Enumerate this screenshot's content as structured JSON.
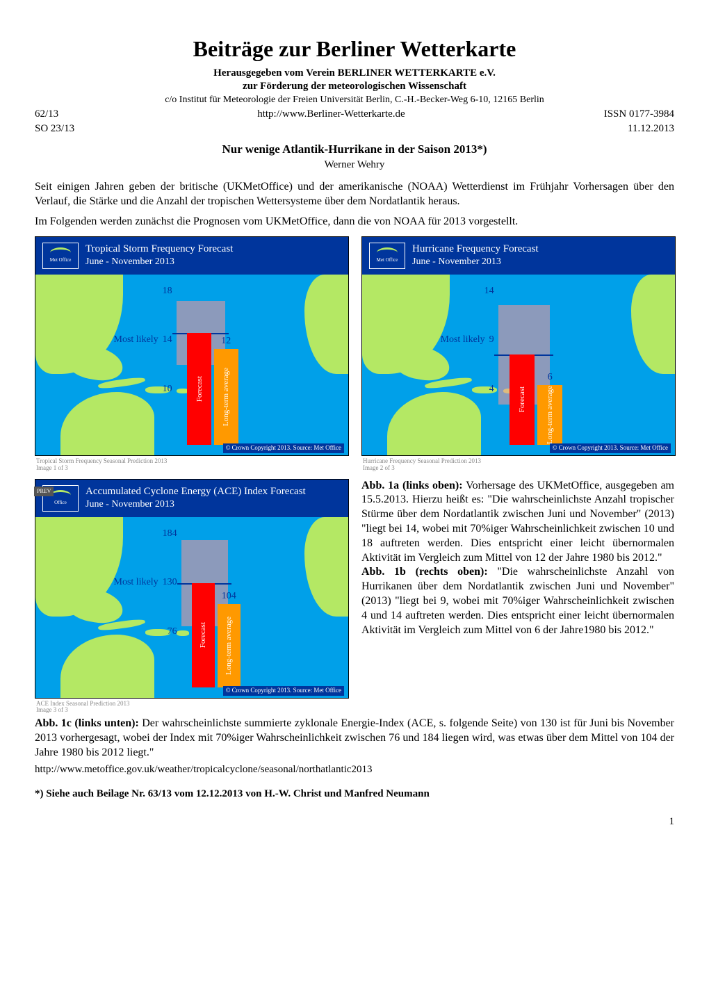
{
  "title": "Beiträge zur Berliner Wetterkarte",
  "publisher_line1": "Herausgegeben vom Verein BERLINER WETTERKARTE e.V.",
  "publisher_line2": "zur Förderung der meteorologischen Wissenschaft",
  "address": "c/o Institut für Meteorologie der Freien Universität Berlin, C.-H.-Becker-Weg 6-10, 12165 Berlin",
  "issue_left": "62/13",
  "website": "http://www.Berliner-Wetterkarte.de",
  "issn": "ISSN 0177-3984",
  "code_left": "SO 23/13",
  "date_right": "11.12.2013",
  "article_title": "Nur wenige Atlantik-Hurrikane in der Saison 2013*)",
  "author": "Werner Wehry",
  "para1": "Seit einigen Jahren geben der britische (UKMetOffice) und der amerikanische (NOAA) Wetterdienst im Frühjahr Vorhersagen über den Verlauf, die Stärke und die Anzahl der tropischen Wettersysteme über dem Nordatlantik heraus.",
  "para2": "Im Folgenden werden zunächst die Prognosen vom UKMetOffice, dann die von NOAA für 2013 vorgestellt.",
  "fig1a": {
    "logo_text": "Met Office",
    "title": "Tropical Storm Frequency Forecast",
    "period": "June - November 2013",
    "upper": 18,
    "most_likely": 14,
    "lower": 10,
    "long_term_avg": 12,
    "most_likely_label": "Most likely",
    "forecast_bar_label": "Forecast",
    "avg_bar_label": "Long-term average",
    "forecast_color": "#ff0000",
    "avg_color": "#ff9900",
    "range_color": "rgba(255,150,150,0.55)",
    "sea_color": "#00a0e9",
    "land_color": "#b4e864",
    "label_color": "#00359c",
    "copyright": "© Crown Copyright 2013. Source: Met Office",
    "caption_small1": "Tropical Storm Frequency Seasonal Prediction 2013",
    "caption_small2": "Image 1 of 3"
  },
  "fig1b": {
    "logo_text": "Met Office",
    "title": "Hurricane Frequency Forecast",
    "period": "June - November 2013",
    "upper": 14,
    "most_likely": 9,
    "lower": 4,
    "long_term_avg": 6,
    "most_likely_label": "Most likely",
    "forecast_bar_label": "Forecast",
    "avg_bar_label": "Long-term average",
    "forecast_color": "#ff0000",
    "avg_color": "#ff9900",
    "range_color": "rgba(255,150,150,0.55)",
    "copyright": "© Crown Copyright 2013. Source: Met Office",
    "caption_small1": "Hurricane Frequency Seasonal Prediction 2013",
    "caption_small2": "Image 2 of 3"
  },
  "fig1c": {
    "logo_text": "Office",
    "prev_badge": "PREV",
    "title": "Accumulated Cyclone Energy (ACE) Index Forecast",
    "period": "June - November 2013",
    "upper": 184,
    "most_likely": 130,
    "lower": 76,
    "long_term_avg": 104,
    "most_likely_label": "Most likely",
    "forecast_bar_label": "Forecast",
    "avg_bar_label": "Long-term average",
    "forecast_color": "#ff0000",
    "avg_color": "#ff9900",
    "range_color": "rgba(255,150,150,0.55)",
    "copyright": "© Crown Copyright 2013. Source: Met Office",
    "caption_small1": "ACE Index Seasonal Prediction 2013",
    "caption_small2": "Image 3 of 3"
  },
  "caption_1a_head": "Abb. 1a (links oben):",
  "caption_1a_body": " Vorhersage des UKMetOffice, ausgegeben am 15.5.2013. Hierzu heißt es: \"Die wahrscheinlichste Anzahl tropischer Stürme über dem Nordatlantik zwischen Juni und November\" (2013) \"liegt bei 14, wobei mit 70%iger Wahrscheinlichkeit zwischen 10 und 18 auftreten werden. Dies entspricht einer leicht übernormalen Aktivität im Vergleich zum Mittel von 12 der Jahre 1980 bis 2012.\"",
  "caption_1b_head": "Abb. 1b (rechts oben):",
  "caption_1b_body": " \"Die wahrscheinlichste Anzahl von Hurrikanen über dem Nordatlantik zwischen Juni und November\" (2013) \"liegt bei 9, wobei mit 70%iger Wahrscheinlichkeit zwischen 4 und 14 auftreten werden. Dies entspricht einer leicht übernormalen Aktivität im Vergleich zum Mittel von 6 der Jahre1980 bis 2012.\"",
  "caption_1c_head": "Abb. 1c (links unten):",
  "caption_1c_body": " Der wahrscheinlichste summierte zyklonale Energie-Index (ACE, s. folgende Seite) von 130 ist für Juni bis November 2013 vorhergesagt, wobei der Index mit 70%iger Wahrscheinlichkeit zwischen 76 und 184 liegen wird, was etwas über dem Mittel von 104 der Jahre 1980 bis 2012 liegt.\"",
  "source_url": "http://www.metoffice.gov.uk/weather/tropicalcyclone/seasonal/northatlantic2013",
  "footnote": "*)  Siehe auch Beilage Nr. 63/13 vom 12.12.2013 von H.-W. Christ und Manfred Neumann",
  "page_number": "1",
  "chart_axis": {
    "fig_a_max": 20,
    "fig_b_max": 16,
    "fig_c_max": 200
  }
}
